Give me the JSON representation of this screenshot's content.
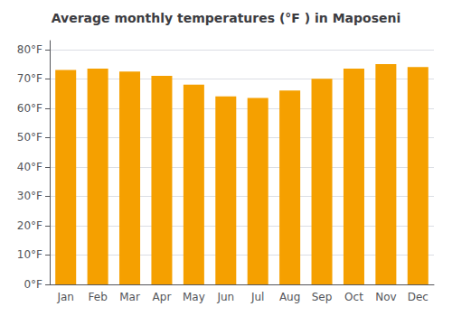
{
  "chart_data": {
    "type": "bar",
    "title": "Average monthly temperatures (°F ) in Maposeni",
    "categories": [
      "Jan",
      "Feb",
      "Mar",
      "Apr",
      "May",
      "Jun",
      "Jul",
      "Aug",
      "Sep",
      "Oct",
      "Nov",
      "Dec"
    ],
    "values": [
      73.0,
      73.5,
      72.5,
      71.0,
      68.0,
      64.0,
      63.5,
      66.0,
      70.0,
      73.5,
      75.0,
      74.0
    ],
    "color": "#F5A000",
    "ylim": [
      0,
      83
    ],
    "yticks": [
      {
        "value": 0,
        "label": "0°F"
      },
      {
        "value": 10,
        "label": "10°F"
      },
      {
        "value": 20,
        "label": "20°F"
      },
      {
        "value": 30,
        "label": "30°F"
      },
      {
        "value": 40,
        "label": "40°F"
      },
      {
        "value": 50,
        "label": "50°F"
      },
      {
        "value": 60,
        "label": "60°F"
      },
      {
        "value": 70,
        "label": "70°F"
      },
      {
        "value": 80,
        "label": "80°F"
      }
    ],
    "grid": true
  }
}
